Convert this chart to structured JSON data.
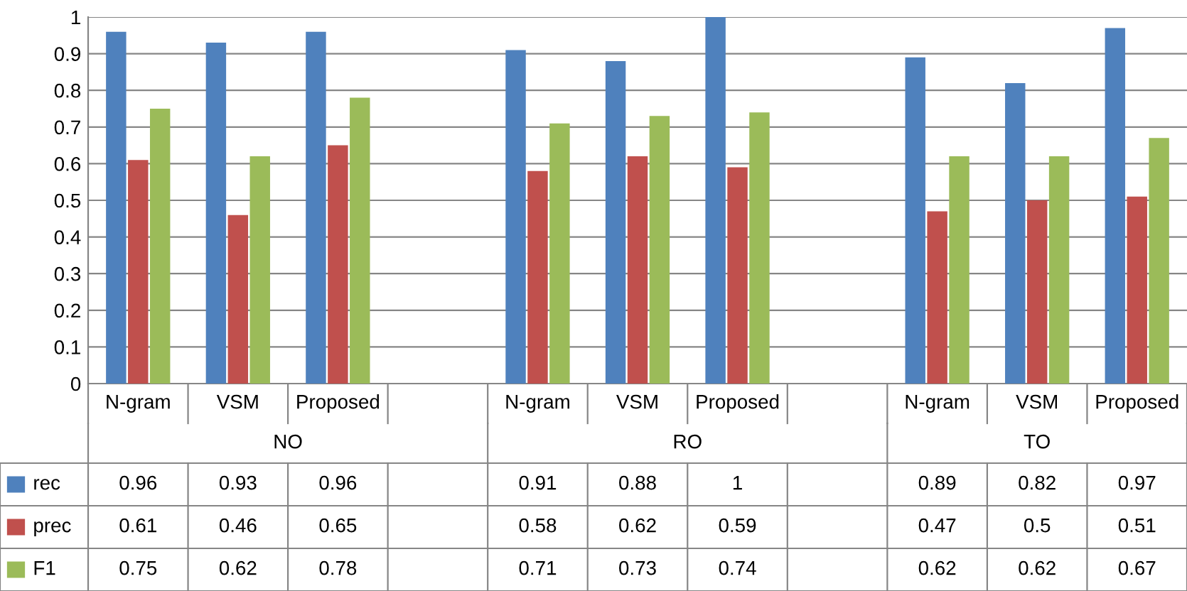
{
  "chart_data": {
    "type": "bar",
    "categories": [
      "N-gram",
      "VSM",
      "Proposed",
      null,
      "N-gram",
      "VSM",
      "Proposed",
      null,
      "N-gram",
      "VSM",
      "Proposed"
    ],
    "series": [
      {
        "name": "rec",
        "color": "#4f81bd",
        "values": [
          0.96,
          0.93,
          0.96,
          null,
          0.91,
          0.88,
          1,
          null,
          0.89,
          0.82,
          0.97
        ]
      },
      {
        "name": "prec",
        "color": "#c0504d",
        "values": [
          0.61,
          0.46,
          0.65,
          null,
          0.58,
          0.62,
          0.59,
          null,
          0.47,
          0.5,
          0.51
        ]
      },
      {
        "name": "F1",
        "color": "#9bbb59",
        "values": [
          0.75,
          0.62,
          0.78,
          null,
          0.71,
          0.73,
          0.74,
          null,
          0.62,
          0.62,
          0.67
        ]
      }
    ],
    "annotations": [
      "NO",
      "RO",
      "TO"
    ],
    "ylim": [
      0,
      1
    ],
    "yticks": [
      0,
      0.1,
      0.2,
      0.3,
      0.4,
      0.5,
      0.6,
      0.7,
      0.8,
      0.9,
      1
    ],
    "grid": "y",
    "data_labels": true,
    "legend": "bottom"
  }
}
